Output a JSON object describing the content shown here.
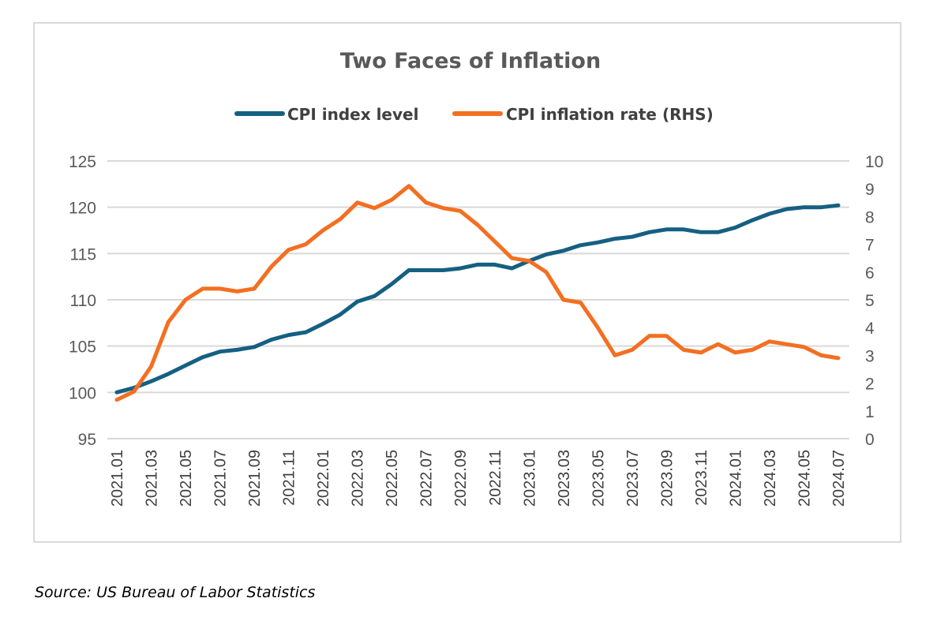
{
  "source": "Source: US Bureau of Labor Statistics",
  "chart_data": {
    "type": "line",
    "title": "Two Faces of Inflation",
    "legend_position": "top-center",
    "grid": true,
    "x": [
      "2021.01",
      "2021.02",
      "2021.03",
      "2021.04",
      "2021.05",
      "2021.06",
      "2021.07",
      "2021.08",
      "2021.09",
      "2021.10",
      "2021.11",
      "2021.12",
      "2022.01",
      "2022.02",
      "2022.03",
      "2022.04",
      "2022.05",
      "2022.06",
      "2022.07",
      "2022.08",
      "2022.09",
      "2022.10",
      "2022.11",
      "2022.12",
      "2023.01",
      "2023.02",
      "2023.03",
      "2023.04",
      "2023.05",
      "2023.06",
      "2023.07",
      "2023.08",
      "2023.09",
      "2023.10",
      "2023.11",
      "2023.12",
      "2024.01",
      "2024.02",
      "2024.03",
      "2024.04",
      "2024.05",
      "2024.06",
      "2024.07"
    ],
    "x_tick_labels": [
      "2021.01",
      "2021.03",
      "2021.05",
      "2021.07",
      "2021.09",
      "2021.11",
      "2022.01",
      "2022.03",
      "2022.05",
      "2022.07",
      "2022.09",
      "2022.11",
      "2023.01",
      "2023.03",
      "2023.05",
      "2023.07",
      "2023.09",
      "2023.11",
      "2024.01",
      "2024.03",
      "2024.05",
      "2024.07"
    ],
    "y_left": {
      "range": [
        95,
        125
      ],
      "ticks": [
        95,
        100,
        105,
        110,
        115,
        120,
        125
      ]
    },
    "y_right": {
      "range": [
        0,
        10
      ],
      "ticks": [
        0,
        1,
        2,
        3,
        4,
        5,
        6,
        7,
        8,
        9,
        10
      ]
    },
    "series": [
      {
        "name": "CPI index level",
        "axis": "left",
        "color": "#156082",
        "values": [
          100.0,
          100.5,
          101.2,
          102.0,
          102.9,
          103.8,
          104.4,
          104.6,
          104.9,
          105.7,
          106.2,
          106.5,
          107.4,
          108.4,
          109.8,
          110.4,
          111.7,
          113.2,
          113.2,
          113.2,
          113.4,
          113.8,
          113.8,
          113.4,
          114.2,
          114.9,
          115.3,
          115.9,
          116.2,
          116.6,
          116.8,
          117.3,
          117.6,
          117.6,
          117.3,
          117.3,
          117.8,
          118.6,
          119.3,
          119.8,
          120.0,
          120.0,
          120.2
        ]
      },
      {
        "name": "CPI inflation rate (RHS)",
        "axis": "right",
        "color": "#F36F21",
        "values": [
          1.4,
          1.7,
          2.6,
          4.2,
          5.0,
          5.4,
          5.4,
          5.3,
          5.4,
          6.2,
          6.8,
          7.0,
          7.5,
          7.9,
          8.5,
          8.3,
          8.6,
          9.1,
          8.5,
          8.3,
          8.2,
          7.7,
          7.1,
          6.5,
          6.4,
          6.0,
          5.0,
          4.9,
          4.0,
          3.0,
          3.2,
          3.7,
          3.7,
          3.2,
          3.1,
          3.4,
          3.1,
          3.2,
          3.5,
          3.4,
          3.3,
          3.0,
          2.9
        ]
      }
    ]
  }
}
